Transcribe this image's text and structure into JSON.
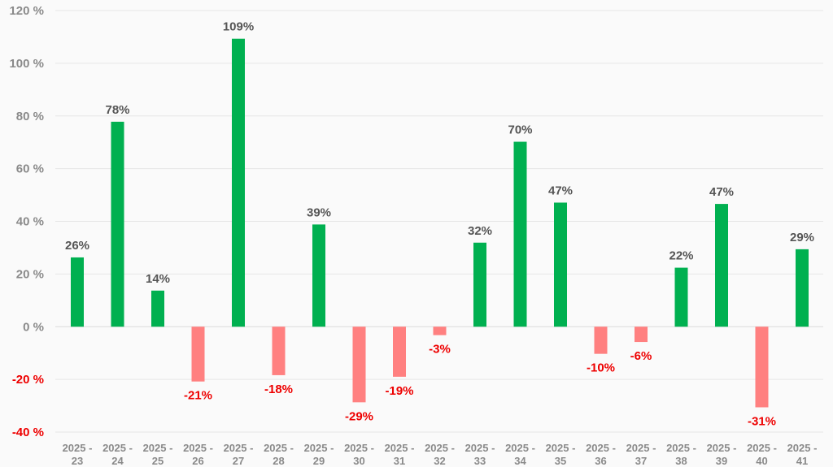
{
  "chart_data": {
    "type": "bar",
    "categories": [
      [
        "2025 -",
        "23"
      ],
      [
        "2025 -",
        "24"
      ],
      [
        "2025 -",
        "25"
      ],
      [
        "2025 -",
        "26"
      ],
      [
        "2025 -",
        "27"
      ],
      [
        "2025 -",
        "28"
      ],
      [
        "2025 -",
        "29"
      ],
      [
        "2025 -",
        "30"
      ],
      [
        "2025 -",
        "31"
      ],
      [
        "2025 -",
        "32"
      ],
      [
        "2025 -",
        "33"
      ],
      [
        "2025 -",
        "34"
      ],
      [
        "2025 -",
        "35"
      ],
      [
        "2025 -",
        "36"
      ],
      [
        "2025 -",
        "37"
      ],
      [
        "2025 -",
        "38"
      ],
      [
        "2025 -",
        "39"
      ],
      [
        "2025 -",
        "40"
      ],
      [
        "2025 -",
        "41"
      ]
    ],
    "values": [
      26.3,
      77.8,
      13.7,
      -20.8,
      109.3,
      -18.4,
      38.8,
      -28.7,
      -19.0,
      -3.2,
      31.9,
      70.2,
      47.1,
      -10.3,
      -5.8,
      22.4,
      46.6,
      -30.6,
      29.4
    ],
    "data_labels": [
      "26%",
      "78%",
      "14%",
      "-21%",
      "109%",
      "-18%",
      "39%",
      "-29%",
      "-19%",
      "-3%",
      "32%",
      "70%",
      "47%",
      "-10%",
      "-6%",
      "22%",
      "47%",
      "-31%",
      "29%"
    ],
    "ylim": [
      -40,
      120
    ],
    "yticks": [
      {
        "value": 120,
        "label": "120 %"
      },
      {
        "value": 100,
        "label": "100 %"
      },
      {
        "value": 80,
        "label": "80 %"
      },
      {
        "value": 60,
        "label": "60 %"
      },
      {
        "value": 40,
        "label": "40 %"
      },
      {
        "value": 20,
        "label": "20 %"
      },
      {
        "value": 0,
        "label": "0 %"
      },
      {
        "value": -20,
        "label": "-20 %"
      },
      {
        "value": -40,
        "label": "-40 %"
      }
    ],
    "grid": true,
    "colors": {
      "positive_bar": "#00b050",
      "negative_bar": "#ff8080",
      "positive_label": "#555555",
      "negative_label": "#ee0000",
      "positive_tick": "#8a8a8a",
      "negative_tick": "#ee0000",
      "grid": "#e6e6e6"
    }
  }
}
